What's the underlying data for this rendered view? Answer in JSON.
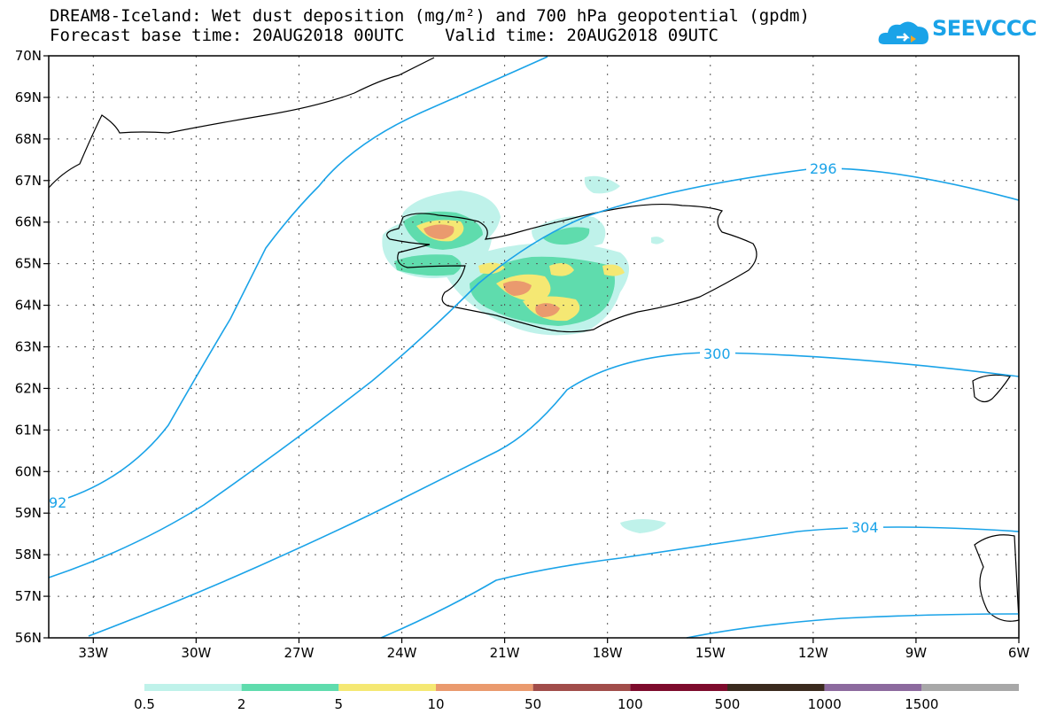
{
  "header": {
    "title_line1": "DREAM8-Iceland: Wet dust deposition (mg/m²) and 700 hPa geopotential (gpdm)",
    "title_line2": "Forecast base time: 20AUG2018 00UTC    Valid time: 20AUG2018 09UTC",
    "logo_text": "SEEVCCC"
  },
  "map": {
    "lat_labels": [
      "70N",
      "69N",
      "68N",
      "67N",
      "66N",
      "65N",
      "64N",
      "63N",
      "62N",
      "61N",
      "60N",
      "59N",
      "58N",
      "57N",
      "56N"
    ],
    "lon_labels": [
      "33W",
      "30W",
      "27W",
      "24W",
      "21W",
      "18W",
      "15W",
      "12W",
      "9W",
      "6W"
    ],
    "contour_labels": [
      "296",
      "300",
      "304",
      "92"
    ],
    "contour_color": "#1aa3e8"
  },
  "legend": {
    "colors": [
      "#bff2ea",
      "#5fdcad",
      "#f5e873",
      "#ea9a6e",
      "#a14d4a",
      "#7d0b2c",
      "#3a2a1e",
      "#8c6a9e",
      "#a8a8a8"
    ],
    "labels": [
      "0.5",
      "2",
      "5",
      "10",
      "50",
      "100",
      "500",
      "1000",
      "1500"
    ]
  }
}
